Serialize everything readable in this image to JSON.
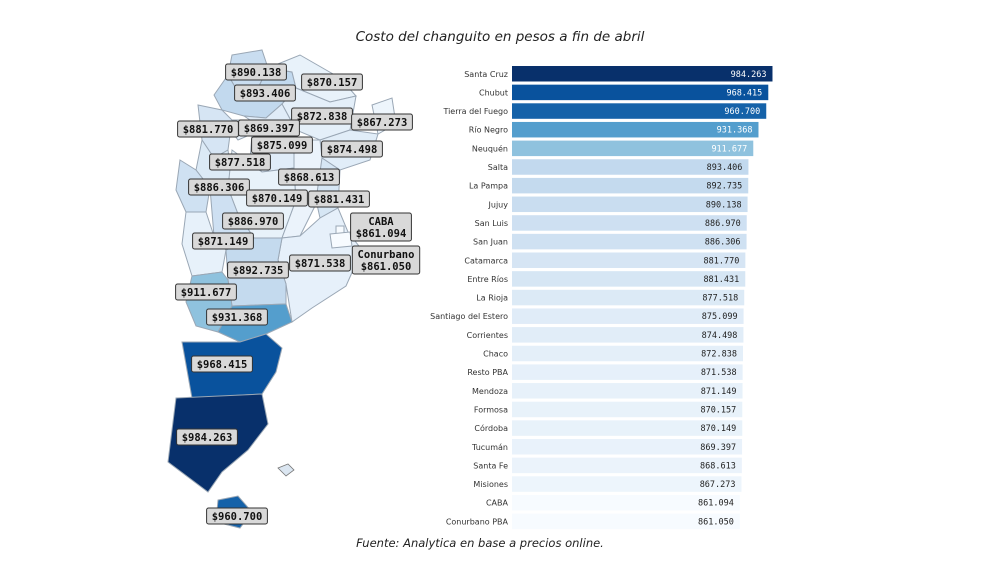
{
  "chart_data": {
    "type": "bar",
    "orientation": "horizontal",
    "title": "Costo del changuito en pesos a fin de abril",
    "source": "Fuente: Analytica en base a precios online.",
    "categories": [
      "Santa Cruz",
      "Chubut",
      "Tierra del Fuego",
      "Río Negro",
      "Neuquén",
      "Salta",
      "La Pampa",
      "Jujuy",
      "San Luis",
      "San Juan",
      "Catamarca",
      "Entre Ríos",
      "La Rioja",
      "Santiago del Estero",
      "Corrientes",
      "Chaco",
      "Resto PBA",
      "Mendoza",
      "Formosa",
      "Córdoba",
      "Tucumán",
      "Santa Fe",
      "Misiones",
      "CABA",
      "Conurbano PBA"
    ],
    "values": [
      984263,
      968415,
      960700,
      931368,
      911677,
      893406,
      892735,
      890138,
      886970,
      886306,
      881770,
      881431,
      877518,
      875099,
      874498,
      872838,
      871538,
      871149,
      870157,
      870149,
      869397,
      868613,
      867273,
      861094,
      861050
    ],
    "value_labels": [
      "984.263",
      "968.415",
      "960.700",
      "931.368",
      "911.677",
      "893.406",
      "892.735",
      "890.138",
      "886.970",
      "886.306",
      "881.770",
      "881.431",
      "877.518",
      "875.099",
      "874.498",
      "872.838",
      "871.538",
      "871.149",
      "870.157",
      "870.149",
      "869.397",
      "868.613",
      "867.273",
      "861.094",
      "861.050"
    ],
    "xlim": [
      0,
      990000
    ],
    "colors": {
      "dark": "#08306b",
      "light": "#f7fbff"
    },
    "grid": false,
    "legend": "none"
  },
  "map_labels": [
    {
      "region": "Jujuy",
      "text": "$890.138"
    },
    {
      "region": "Formosa",
      "text": "$870.157"
    },
    {
      "region": "Salta",
      "text": "$893.406"
    },
    {
      "region": "Chaco",
      "text": "$872.838"
    },
    {
      "region": "Misiones",
      "text": "$867.273"
    },
    {
      "region": "Catamarca",
      "text": "$881.770"
    },
    {
      "region": "Tucumán",
      "text": "$869.397"
    },
    {
      "region": "Santiago del Estero",
      "text": "$875.099"
    },
    {
      "region": "Corrientes",
      "text": "$874.498"
    },
    {
      "region": "La Rioja",
      "text": "$877.518"
    },
    {
      "region": "Santa Fe",
      "text": "$868.613"
    },
    {
      "region": "San Juan",
      "text": "$886.306"
    },
    {
      "region": "Córdoba",
      "text": "$870.149"
    },
    {
      "region": "Entre Ríos",
      "text": "$881.431"
    },
    {
      "region": "San Luis",
      "text": "$886.970"
    },
    {
      "region": "Mendoza",
      "text": "$871.149"
    },
    {
      "region": "CABA",
      "text": [
        "CABA",
        "$861.094"
      ]
    },
    {
      "region": "Resto PBA",
      "text": "$871.538"
    },
    {
      "region": "Conurbano PBA",
      "text": [
        "Conurbano",
        "$861.050"
      ]
    },
    {
      "region": "La Pampa",
      "text": "$892.735"
    },
    {
      "region": "Neuquén",
      "text": "$911.677"
    },
    {
      "region": "Río Negro",
      "text": "$931.368"
    },
    {
      "region": "Chubut",
      "text": "$968.415"
    },
    {
      "region": "Santa Cruz",
      "text": "$984.263"
    },
    {
      "region": "Tierra del Fuego",
      "text": "$960.700"
    }
  ]
}
